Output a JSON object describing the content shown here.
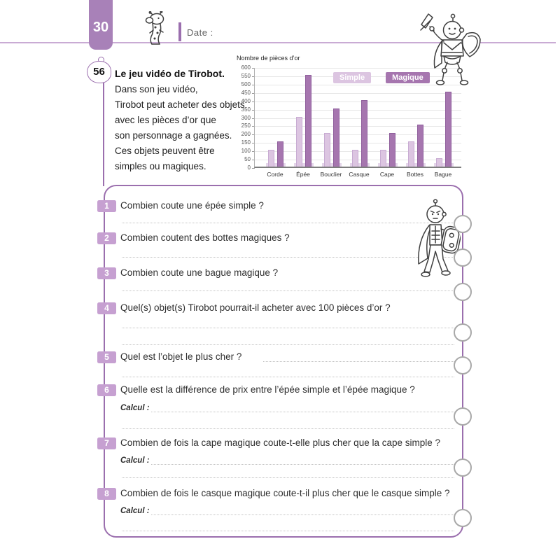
{
  "header": {
    "page_number": "30",
    "date_label": "Date :"
  },
  "exercise": {
    "number": "56",
    "title": "Le jeu vidéo de Tirobot.",
    "intro_lines": [
      "Dans son jeu vidéo,",
      "Tirobot peut acheter des objets",
      "avec les pièces d’or que",
      "son personnage a gagnées.",
      "Ces objets peuvent être",
      "simples ou magiques."
    ]
  },
  "chart_data": {
    "type": "bar",
    "ylabel": "Nombre de pièces d’or",
    "categories": [
      "Corde",
      "Épée",
      "Bouclier",
      "Casque",
      "Cape",
      "Bottes",
      "Bague"
    ],
    "series": [
      {
        "name": "Simple",
        "color": "#dcc5e1",
        "values": [
          100,
          300,
          200,
          100,
          100,
          150,
          50
        ]
      },
      {
        "name": "Magique",
        "color": "#a676af",
        "values": [
          150,
          550,
          350,
          400,
          200,
          250,
          450
        ]
      }
    ],
    "ylim": [
      0,
      600
    ],
    "ytick_step": 50,
    "grid": true,
    "legend_position": "top-right"
  },
  "questions": [
    {
      "number": "1",
      "text": "Combien coute une épée simple ?"
    },
    {
      "number": "2",
      "text": "Combien coutent des bottes magiques ?"
    },
    {
      "number": "3",
      "text": "Combien coute une bague magique ?"
    },
    {
      "number": "4",
      "text": "Quel(s) objet(s) Tirobot pourrait-il acheter avec 100 pièces d’or ?"
    },
    {
      "number": "5",
      "text": "Quel est l’objet le plus cher ?"
    },
    {
      "number": "6",
      "text": "Quelle est la différence de prix entre l’épée simple et l’épée magique ?",
      "calcul_label": "Calcul :"
    },
    {
      "number": "7",
      "text": "Combien de fois la cape magique coute-t-elle plus cher que la cape simple ?",
      "calcul_label": "Calcul :"
    },
    {
      "number": "8",
      "text": "Combien de fois le casque magique coute-t-il plus cher que le casque simple ?",
      "calcul_label": "Calcul :"
    }
  ],
  "colors": {
    "accent_purple": "#9b6fae",
    "tab_purple": "#a881b8",
    "badge_purple": "#c6a0d1",
    "simple_bar": "#dcc5e1",
    "magique_bar": "#a676af"
  }
}
